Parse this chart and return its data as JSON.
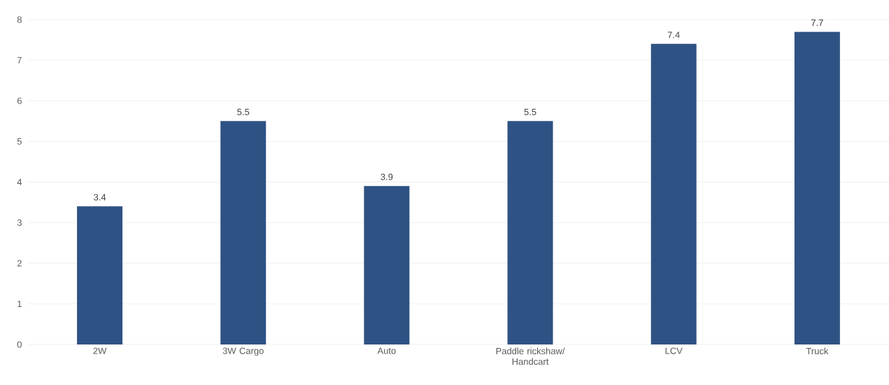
{
  "chart_data": {
    "type": "bar",
    "categories": [
      "2W",
      "3W Cargo",
      "Auto",
      "Paddle rickshaw/ Handcart",
      "LCV",
      "Truck"
    ],
    "values": [
      3.4,
      5.5,
      3.9,
      5.5,
      7.4,
      7.7
    ],
    "color": "#2e5283",
    "ylim": [
      0,
      8
    ],
    "yticks": [
      0,
      1,
      2,
      3,
      4,
      5,
      6,
      7,
      8
    ],
    "grid": "y",
    "data_labels": true
  }
}
